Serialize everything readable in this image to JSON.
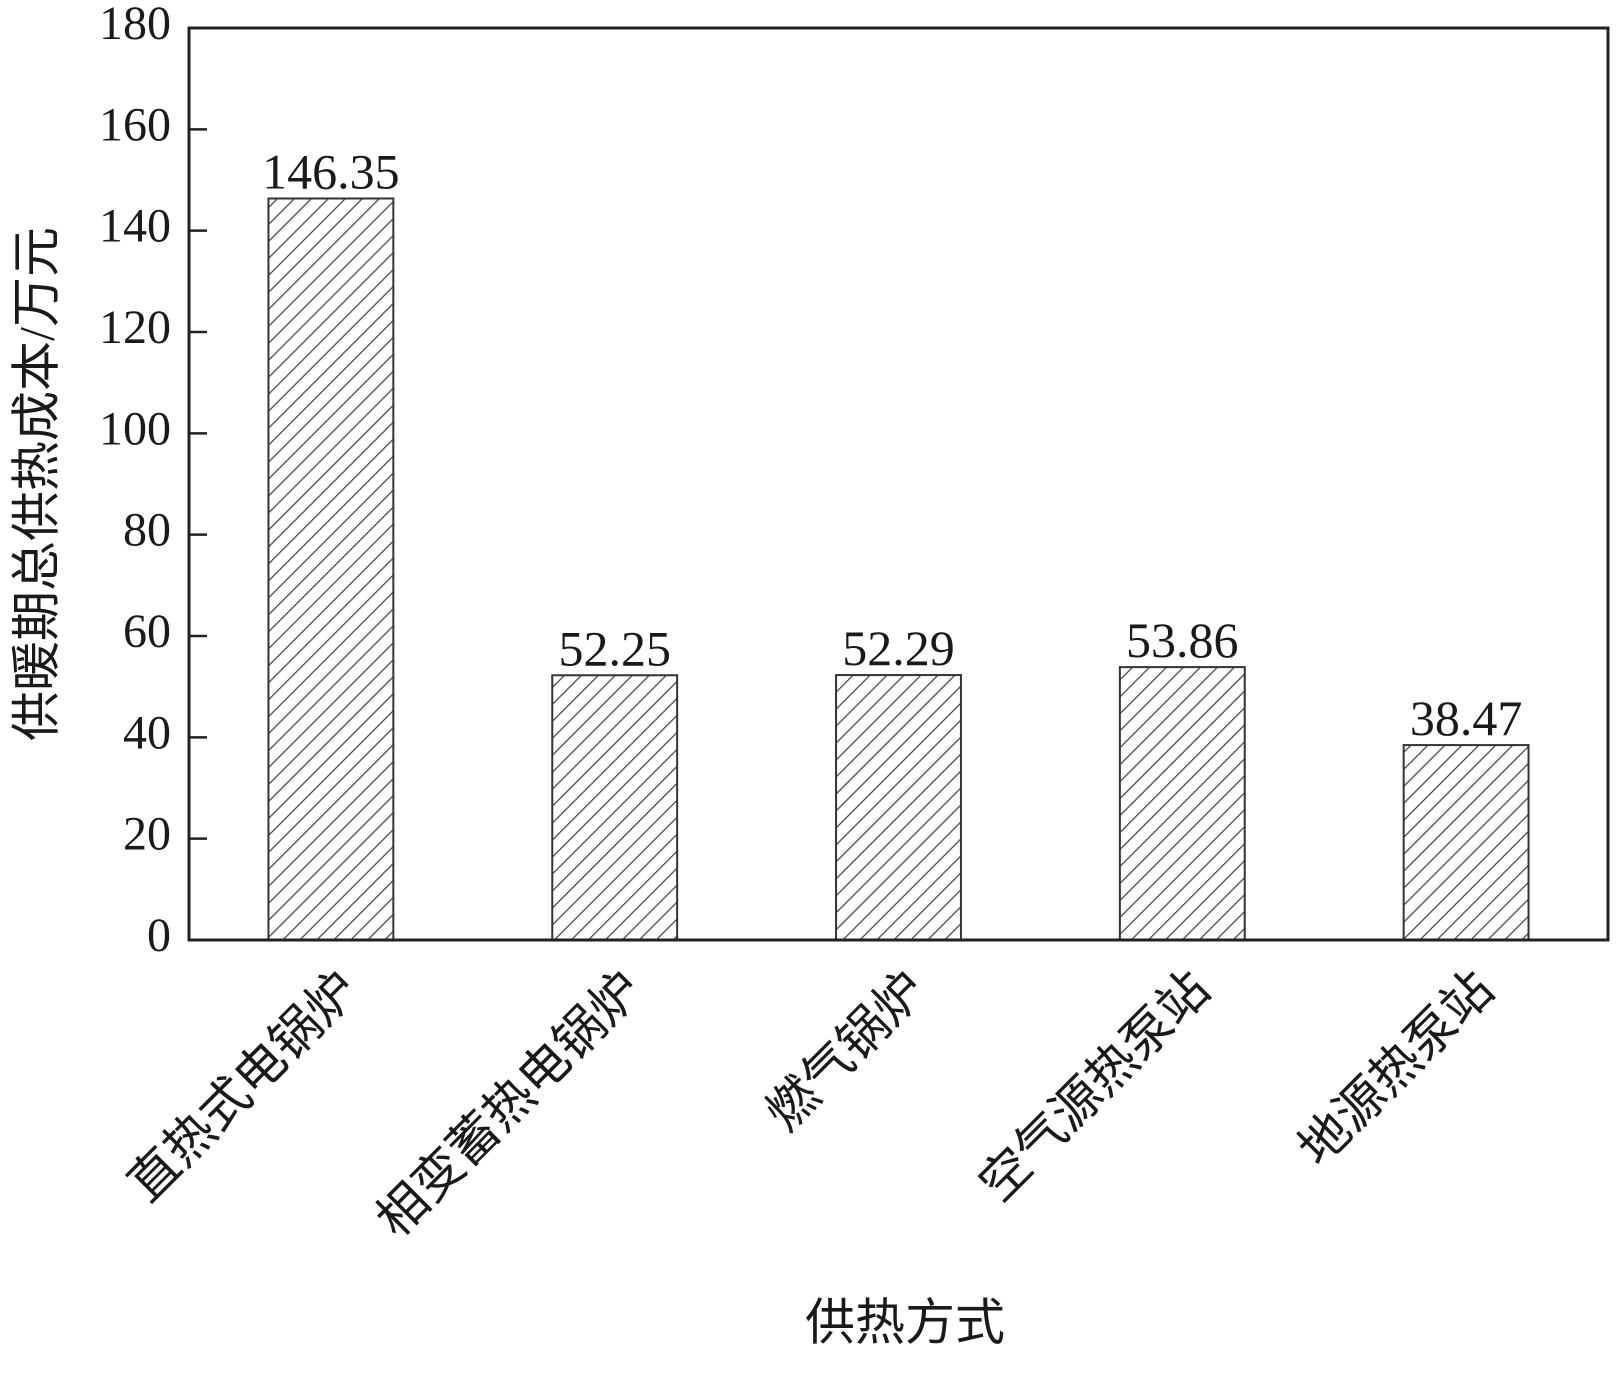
{
  "chart_data": {
    "type": "bar",
    "xlabel": "供热方式",
    "ylabel": "供暖期总供热成本/万元",
    "categories": [
      "直热式电锅炉",
      "相变蓄热电锅炉",
      "燃气锅炉",
      "空气源热泵站",
      "地源热泵站"
    ],
    "values": [
      146.35,
      52.25,
      52.29,
      53.86,
      38.47
    ],
    "color": "#444444",
    "ylim": [
      0,
      180
    ],
    "yticks": [
      0,
      20,
      40,
      60,
      80,
      100,
      120,
      140,
      160,
      180
    ]
  }
}
